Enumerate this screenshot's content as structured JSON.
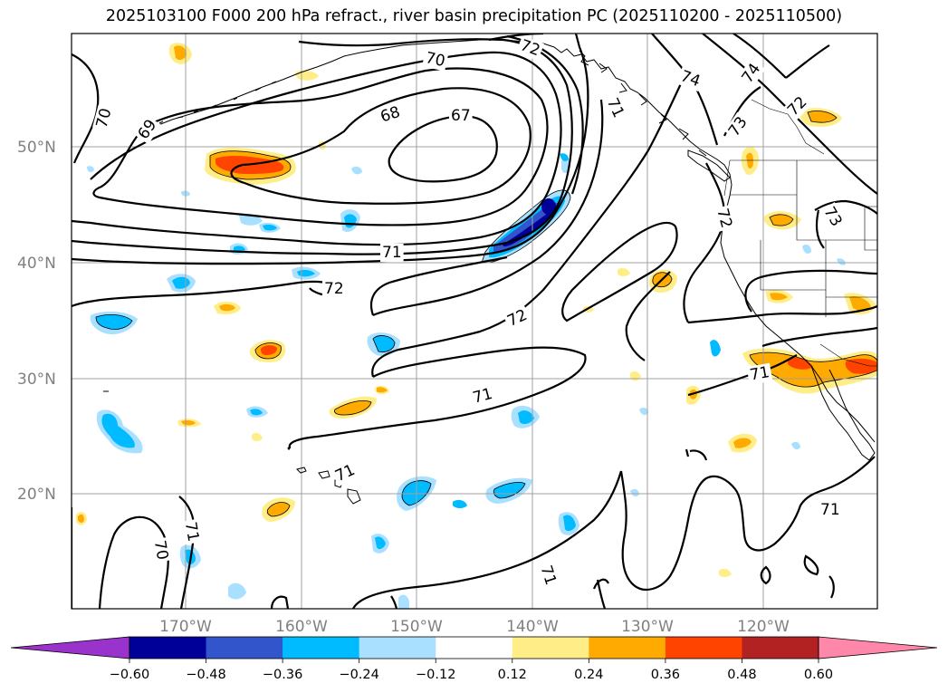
{
  "title": "2025103100 F000 200 hPa refract., river basin precipitation PC (2025110200 - 2025110500)",
  "colors": {
    "coast": "#000000",
    "grid": "#a0a0a0",
    "tick_label": "#808080"
  },
  "lat_labels": [
    "20°N",
    "30°N",
    "40°N",
    "50°N"
  ],
  "lon_labels": [
    "170°W",
    "160°W",
    "150°W",
    "140°W",
    "130°W",
    "120°W"
  ],
  "contour_labels": [
    "70",
    "72",
    "74",
    "74",
    "72",
    "73",
    "67",
    "68",
    "69",
    "70",
    "71",
    "72",
    "72",
    "72",
    "71",
    "71",
    "71",
    "71",
    "73",
    "71",
    "70",
    "71",
    "71"
  ],
  "colorbar": {
    "colors": [
      "#9933cc",
      "#000099",
      "#3355cc",
      "#00bbff",
      "#aae0ff",
      "#ffffff",
      "#ffee88",
      "#ffaa00",
      "#ff4400",
      "#b22222",
      "#ff88aa"
    ],
    "ticks": [
      "−0.60",
      "−0.48",
      "−0.36",
      "−0.24",
      "−0.12",
      "0.12",
      "0.24",
      "0.36",
      "0.48",
      "0.60"
    ]
  }
}
